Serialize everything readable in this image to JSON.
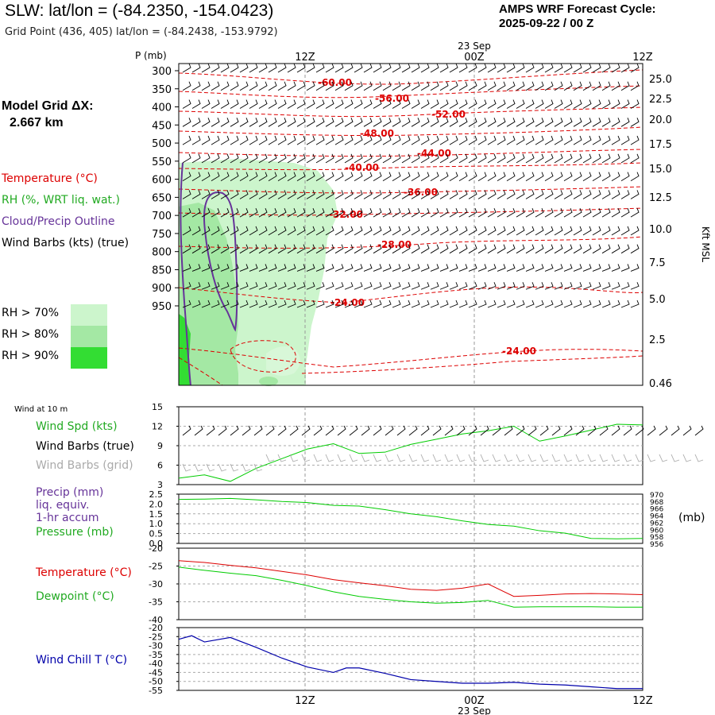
{
  "header": {
    "title": "SLW:  lat/lon = (-84.2350, -154.0423)",
    "subtitle": "Grid Point (436, 405) lat/lon = (-84.2438, -153.9792)",
    "cycle_line1": "AMPS WRF Forecast Cycle:",
    "cycle_line2": "2025-09-22 / 00  Z",
    "model_dx_label": "Model Grid ΔX:",
    "model_dx_value": "2.667 km"
  },
  "legend": {
    "temperature": "Temperature (°C)",
    "rh": "RH (%, WRT liq. wat.)",
    "cloud": "Cloud/Precip Outline",
    "wind": "Wind Barbs (kts) (true)",
    "rh70": "RH > 70%",
    "rh80": "RH > 80%",
    "rh90": "RH > 90%"
  },
  "colors": {
    "temperature": "#dd0000",
    "rh": "#22aa22",
    "cloud": "#663399",
    "rh70": "#ccf5cc",
    "rh80": "#a4e8a4",
    "rh90": "#33dd33",
    "windchill": "#0000aa",
    "grid_barbs": "#aaaaaa",
    "dewpoint": "#00cc00"
  },
  "chart_data": [
    {
      "type": "contour",
      "name": "sounding",
      "pressure_label": "P (mb)",
      "pressure_levels": [
        300,
        350,
        400,
        450,
        500,
        550,
        600,
        650,
        700,
        750,
        800,
        850,
        900,
        950
      ],
      "right_axis_label": "Kft MSL",
      "height_ticks": [
        "25.0",
        "22.5",
        "20.0",
        "17.5",
        "15.0",
        "12.5",
        "10.0",
        "7.5",
        "5.0",
        "2.5",
        "0.46"
      ],
      "time_labels": [
        "12Z",
        "00Z",
        "12Z"
      ],
      "date_label": "23 Sep",
      "temperature_labels": [
        "-60.00",
        "-56.00",
        "-52.00",
        "-48.00",
        "-44.00",
        "-40.00",
        "-36.00",
        "-32.00",
        "-28.00",
        "-24.00",
        "-24.00"
      ]
    },
    {
      "type": "line",
      "name": "wind",
      "title": "Wind at 10 m",
      "series_labels": {
        "speed": "Wind Spd (kts)",
        "barbs_true": "Wind Barbs (true)",
        "barbs_grid": "Wind Barbs (grid)"
      },
      "y_ticks": [
        "15",
        "12",
        "9",
        "6",
        "3"
      ],
      "ylim": [
        3,
        15
      ],
      "x_hours": [
        0,
        2,
        4,
        6,
        8,
        10,
        12,
        14,
        16,
        18,
        20,
        22,
        24,
        26,
        28,
        30,
        32,
        34,
        36
      ],
      "speed_kts": [
        4,
        4.5,
        3.5,
        5.5,
        7,
        8.5,
        9.3,
        7.8,
        8,
        9.2,
        10,
        10.8,
        11.3,
        12,
        9.7,
        10.5,
        11.4,
        12.3,
        12.2
      ]
    },
    {
      "type": "line",
      "name": "precip_pressure",
      "series_labels": {
        "precip": "Precip (mm)",
        "precip2": "liq. equiv.",
        "precip3": "1-hr accum",
        "pressure": "Pressure (mb)"
      },
      "y_ticks": [
        "2.5",
        "2.0",
        "1.5",
        "1.0",
        "0.5",
        "0.0"
      ],
      "y_right_ticks": [
        "970",
        "968",
        "966",
        "964",
        "962",
        "960",
        "958",
        "956"
      ],
      "y_right_label": "(mb)",
      "ylim": [
        0,
        2.5
      ],
      "pressure_ylim": [
        956,
        970
      ],
      "x_hours": [
        0,
        2,
        4,
        6,
        8,
        10,
        12,
        14,
        16,
        18,
        20,
        22,
        24,
        26,
        28,
        30,
        32,
        34,
        36
      ],
      "pressure_mb": [
        968.5,
        968.6,
        968.8,
        968.4,
        967.9,
        967.6,
        966.8,
        966.6,
        965.6,
        964.4,
        963.6,
        962.4,
        961.4,
        960.9,
        959.6,
        958.9,
        957.4,
        957.3,
        957.4
      ]
    },
    {
      "type": "line",
      "name": "temperature",
      "series_labels": {
        "temperature": "Temperature (°C)",
        "dewpoint": "Dewpoint (°C)"
      },
      "y_ticks": [
        "-20",
        "-25",
        "-30",
        "-35",
        "-40"
      ],
      "ylim": [
        -40,
        -20
      ],
      "x_hours": [
        0,
        2,
        4,
        6,
        8,
        10,
        12,
        14,
        16,
        18,
        20,
        22,
        24,
        26,
        28,
        30,
        32,
        34,
        36
      ],
      "temperature_c": [
        -23.5,
        -24,
        -24.8,
        -25.5,
        -26.5,
        -27.5,
        -28.8,
        -29.7,
        -30.5,
        -31.5,
        -31.8,
        -31.2,
        -30,
        -33.5,
        -33.2,
        -32.8,
        -32.7,
        -32.8,
        -33
      ],
      "dewpoint_c": [
        -25.3,
        -26.2,
        -27,
        -27.7,
        -29,
        -30.5,
        -32.2,
        -33.5,
        -34.3,
        -35,
        -35.4,
        -35.2,
        -34.6,
        -36.5,
        -36.4,
        -36.4,
        -36.4,
        -36.5,
        -36.5
      ]
    },
    {
      "type": "line",
      "name": "windchill",
      "series_labels": {
        "windchill": "Wind Chill T (°C)"
      },
      "y_ticks": [
        "-20",
        "-25",
        "-30",
        "-35",
        "-40",
        "-45",
        "-50",
        "-55"
      ],
      "ylim": [
        -55,
        -20
      ],
      "x_hours": [
        0,
        1,
        2,
        4,
        6,
        8,
        10,
        12,
        13,
        14,
        16,
        18,
        20,
        22,
        24,
        26,
        28,
        30,
        32,
        34,
        36
      ],
      "windchill_c": [
        -26.5,
        -24.5,
        -28,
        -25.5,
        -31,
        -37,
        -42,
        -45,
        -42.5,
        -42.5,
        -45.5,
        -49,
        -50,
        -51,
        -51,
        -50.5,
        -51.5,
        -52,
        -53,
        -54,
        -54
      ]
    }
  ]
}
